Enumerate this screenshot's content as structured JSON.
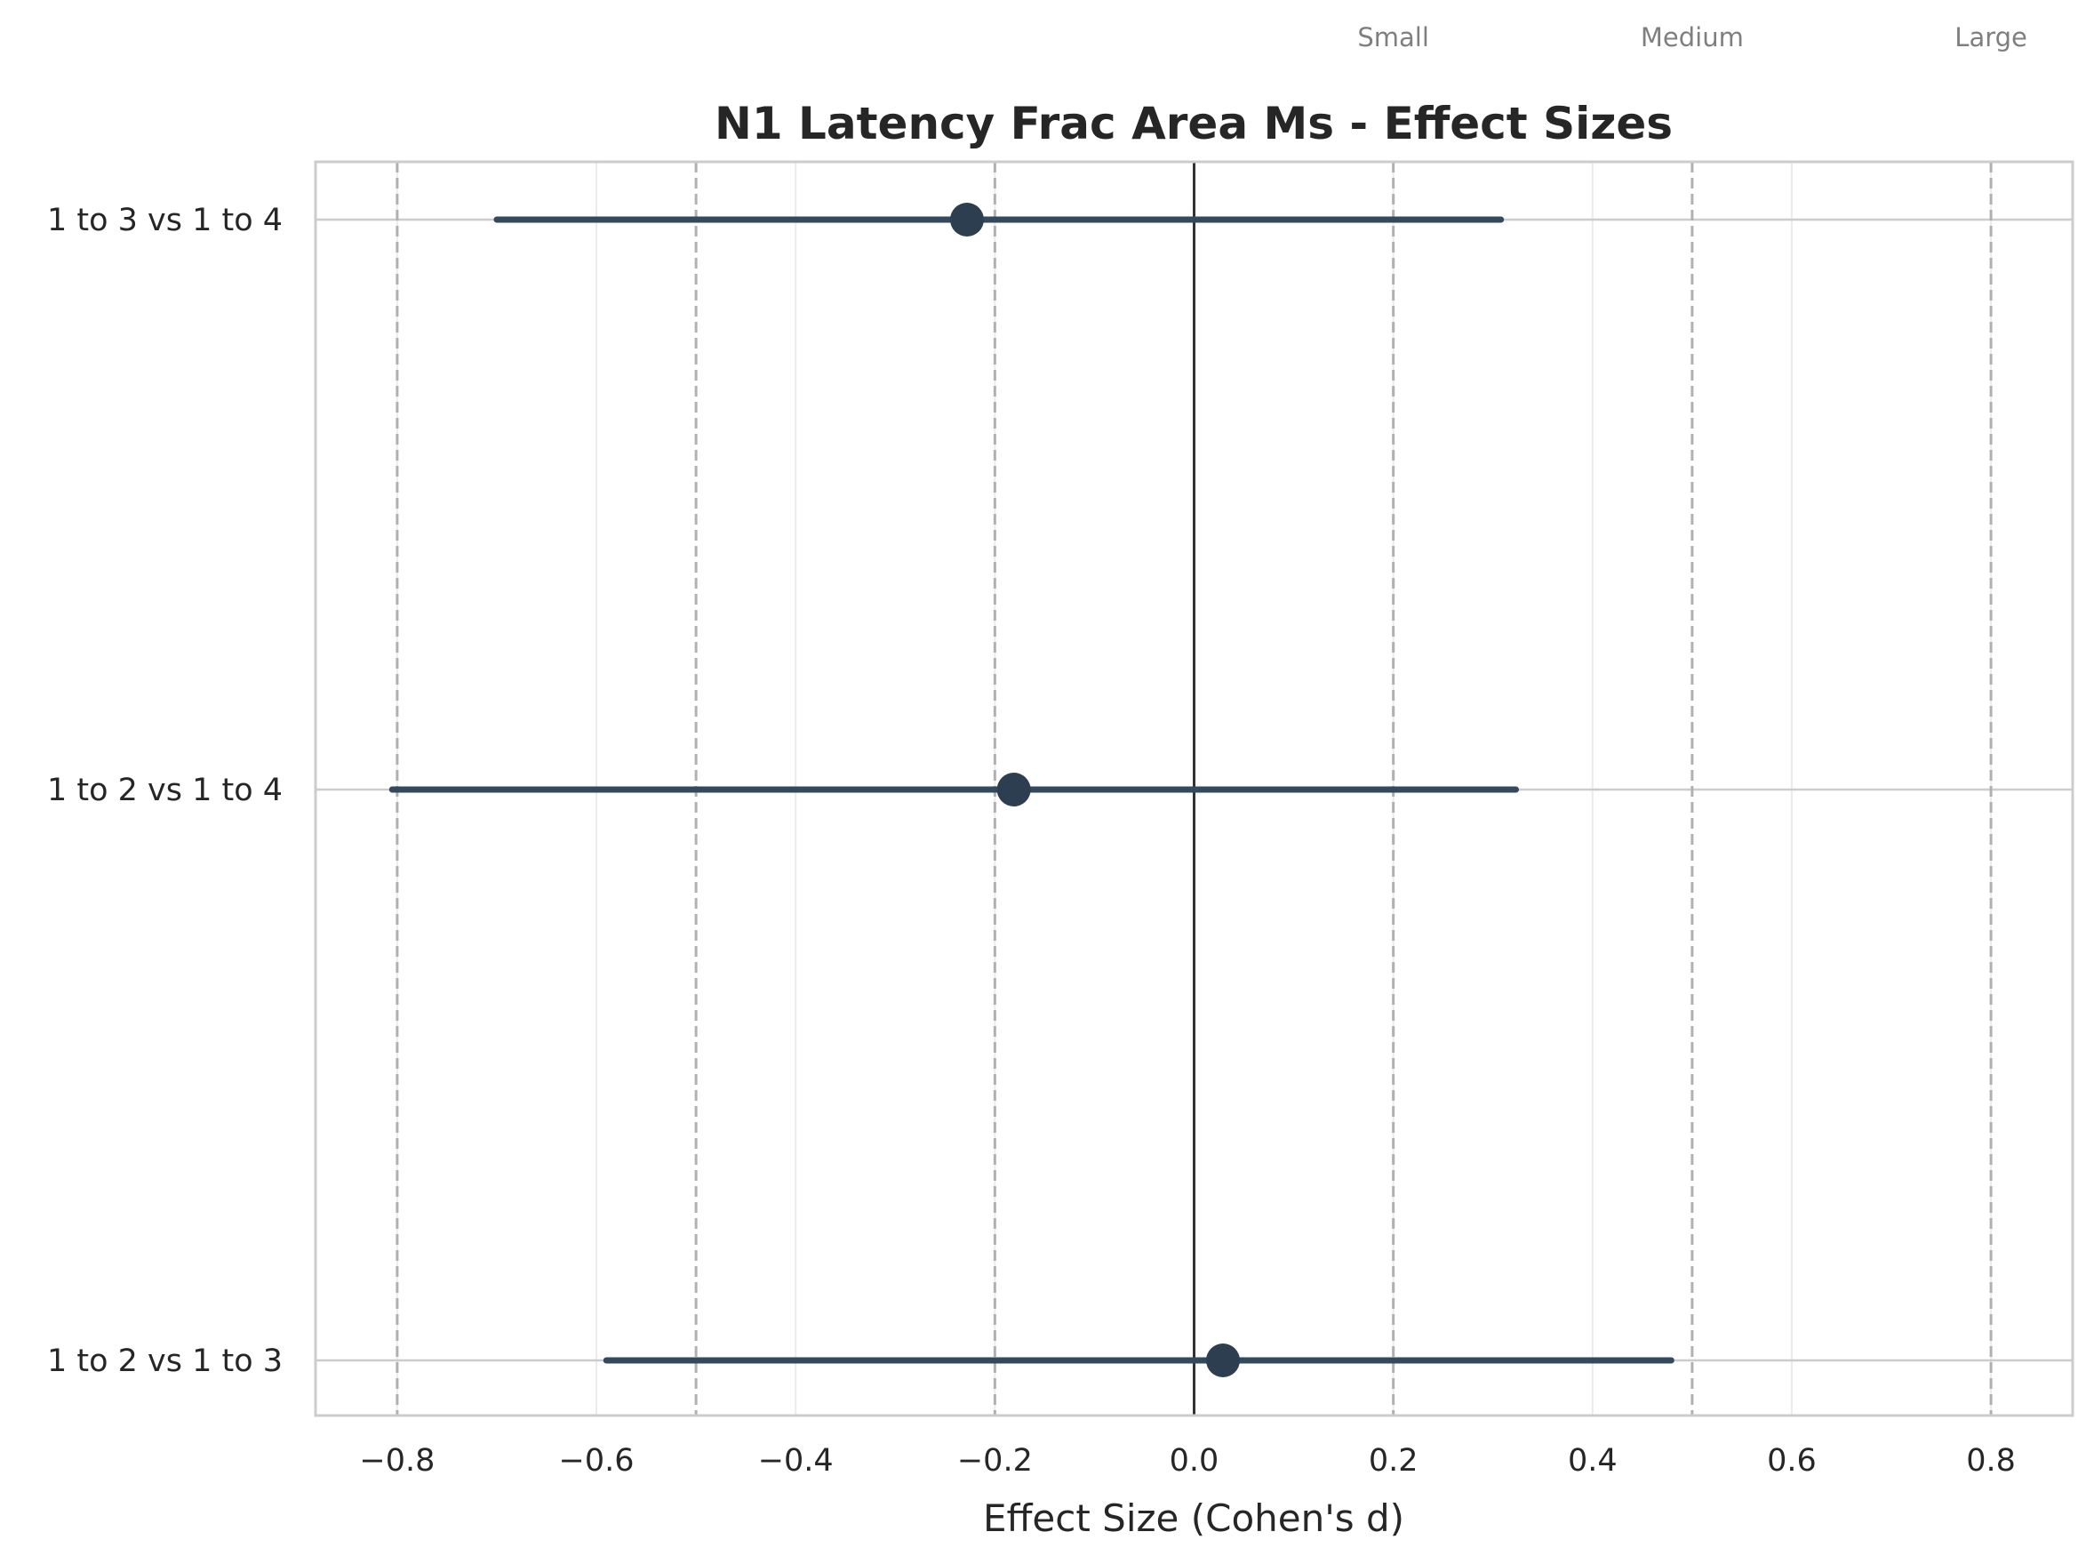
{
  "chart_data": {
    "type": "forest",
    "title": "N1 Latency Frac Area Ms - Effect Sizes",
    "xlabel": "Effect Size (Cohen's d)",
    "ylabel": "",
    "xlim": [
      -0.882,
      0.882
    ],
    "xticks": [
      -0.8,
      -0.6,
      -0.4,
      -0.2,
      0.0,
      0.2,
      0.4,
      0.6,
      0.8
    ],
    "xtick_labels": [
      "−0.8",
      "−0.6",
      "−0.4",
      "−0.2",
      "0.0",
      "0.2",
      "0.4",
      "0.6",
      "0.8"
    ],
    "grid": true,
    "comparisons": [
      {
        "label": "1 to 3 vs 1 to 4",
        "d": -0.228,
        "ci_low": -0.7,
        "ci_high": 0.308
      },
      {
        "label": "1 to 2 vs 1 to 4",
        "d": -0.181,
        "ci_low": -0.805,
        "ci_high": 0.323
      },
      {
        "label": "1 to 2 vs 1 to 3",
        "d": 0.029,
        "ci_low": -0.59,
        "ci_high": 0.479
      }
    ],
    "reference_lines": [
      {
        "x": -0.8,
        "label": ""
      },
      {
        "x": -0.5,
        "label": ""
      },
      {
        "x": -0.2,
        "label": ""
      },
      {
        "x": 0.2,
        "label": "Small"
      },
      {
        "x": 0.5,
        "label": "Medium"
      },
      {
        "x": 0.8,
        "label": "Large"
      }
    ],
    "zero_line": 0,
    "colors": {
      "point": "#2c3e50",
      "ci_line": "#34495e",
      "reference": "#b0b0b0",
      "zero": "#333333",
      "grid": "#ebebeb",
      "spine": "#cccccc"
    }
  }
}
